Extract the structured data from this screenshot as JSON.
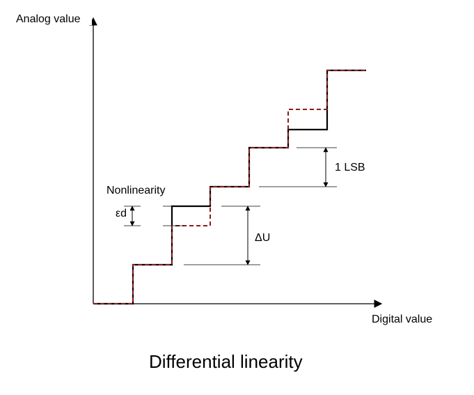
{
  "diagram": {
    "caption": "Differential linearity",
    "y_axis_label": "Analog value",
    "x_axis_label": "Digital value",
    "annotations": {
      "nonlinearity": "Nonlinearity",
      "epsilon_d": "εd",
      "delta_u": "ΔU",
      "one_lsb": "1 LSB"
    },
    "colors": {
      "ideal_staircase": "#000000",
      "actual_staircase": "#8b1a1a",
      "axes": "#000000"
    },
    "line_styles": {
      "ideal_staircase": "solid",
      "actual_staircase": "dashed"
    }
  }
}
